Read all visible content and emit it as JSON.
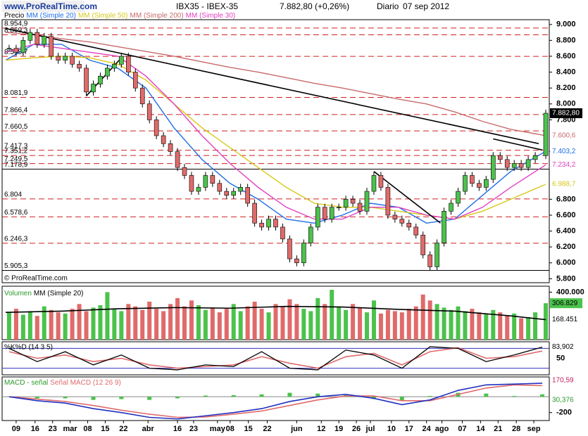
{
  "header": {
    "logo": "www.ProRealTime.com",
    "symbol": "IBX35 - IBEX-35",
    "last": "7.882,80 (+0,26%)",
    "period": "Diario",
    "date": "07 sep 2012"
  },
  "chart_data": {
    "type": "candlestick",
    "price_name": "Precio",
    "copyright": "© ProRealTime.com",
    "xlim": [
      0,
      780
    ],
    "xticks": [
      {
        "value": 20,
        "label": "09"
      },
      {
        "value": 47,
        "label": "16"
      },
      {
        "value": 72,
        "label": "23"
      },
      {
        "value": 97,
        "label": "mar"
      },
      {
        "value": 122,
        "label": "08"
      },
      {
        "value": 147,
        "label": "15"
      },
      {
        "value": 173,
        "label": "22"
      },
      {
        "value": 208,
        "label": "abr"
      },
      {
        "value": 250,
        "label": "16"
      },
      {
        "value": 273,
        "label": "23"
      },
      {
        "value": 307,
        "label": "may"
      },
      {
        "value": 325,
        "label": "08"
      },
      {
        "value": 351,
        "label": "15"
      },
      {
        "value": 378,
        "label": "22"
      },
      {
        "value": 420,
        "label": "jun"
      },
      {
        "value": 455,
        "label": "12"
      },
      {
        "value": 480,
        "label": "19"
      },
      {
        "value": 505,
        "label": "26"
      },
      {
        "value": 525,
        "label": "jul"
      },
      {
        "value": 555,
        "label": "10"
      },
      {
        "value": 580,
        "label": "17"
      },
      {
        "value": 605,
        "label": "24"
      },
      {
        "value": 627,
        "label": "ago"
      },
      {
        "value": 656,
        "label": "07"
      },
      {
        "value": 682,
        "label": "14"
      },
      {
        "value": 707,
        "label": "21"
      },
      {
        "value": 733,
        "label": "28"
      },
      {
        "value": 758,
        "label": "sep"
      }
    ],
    "ylim": [
      5750,
      9060
    ],
    "yticks": [
      {
        "value": 9000,
        "label": "9.000"
      },
      {
        "value": 8800,
        "label": "8.800"
      },
      {
        "value": 8600,
        "label": "8.600"
      },
      {
        "value": 8400,
        "label": "8.400"
      },
      {
        "value": 8200,
        "label": "8.200"
      },
      {
        "value": 8000,
        "label": "8.000"
      },
      {
        "value": 7800,
        "label": "7.800"
      },
      {
        "value": 7400,
        "label": "7.400"
      },
      {
        "value": 6800,
        "label": "6.800"
      },
      {
        "value": 6600,
        "label": "6.600"
      },
      {
        "value": 6400,
        "label": "6.400"
      },
      {
        "value": 6200,
        "label": "6.200"
      },
      {
        "value": 6000,
        "label": "6.000"
      },
      {
        "value": 5800,
        "label": "5.800"
      }
    ],
    "levels": [
      {
        "value": 8954.9,
        "label": "8.954,9",
        "color": "#d02020"
      },
      {
        "value": 8869.3,
        "label": "8.869,3",
        "color": "#d02020"
      },
      {
        "value": 8598.7,
        "label": "8.598,7",
        "color": "#d02020"
      },
      {
        "value": 8081.9,
        "label": "8.081,9",
        "color": "#d02020"
      },
      {
        "value": 7866.4,
        "label": "7.866,4",
        "color": "#d02020"
      },
      {
        "value": 7660.5,
        "label": "7.660,5",
        "color": "#d02020"
      },
      {
        "value": 7417.3,
        "label": "7.417,3",
        "color": "#d02020"
      },
      {
        "value": 7351.2,
        "label": "7.351,2",
        "color": "#d02020"
      },
      {
        "value": 7249.5,
        "label": "7.249,5",
        "color": "#d02020"
      },
      {
        "value": 7178.9,
        "label": "7.178,9",
        "color": "#000000"
      },
      {
        "value": 6804,
        "label": "6.804",
        "color": "#d02020"
      },
      {
        "value": 6578.6,
        "label": "6.578,6",
        "color": "#d02020"
      },
      {
        "value": 6246.3,
        "label": "6.246,3",
        "color": "#d02020"
      },
      {
        "value": 5905.3,
        "label": "5.905,3",
        "color": "#000000"
      }
    ],
    "x": [
      10,
      20,
      30,
      40,
      50,
      60,
      70,
      80,
      90,
      100,
      110,
      120,
      130,
      140,
      150,
      160,
      170,
      180,
      190,
      200,
      210,
      220,
      230,
      240,
      250,
      260,
      270,
      280,
      290,
      300,
      310,
      320,
      330,
      340,
      350,
      360,
      370,
      380,
      390,
      400,
      410,
      420,
      430,
      440,
      450,
      460,
      470,
      480,
      490,
      500,
      510,
      520,
      530,
      540,
      550,
      560,
      570,
      580,
      590,
      600,
      610,
      620,
      630,
      640,
      650,
      660,
      670,
      680,
      690,
      700,
      710,
      720,
      730,
      740,
      750,
      760,
      775
    ],
    "values": [
      8700,
      8650,
      8800,
      8900,
      8750,
      8850,
      8600,
      8550,
      8600,
      8500,
      8450,
      8150,
      8250,
      8350,
      8450,
      8500,
      8600,
      8400,
      8200,
      8000,
      7800,
      7600,
      7500,
      7400,
      7200,
      7100,
      6900,
      6950,
      7100,
      7000,
      6900,
      6850,
      6900,
      6950,
      6750,
      6500,
      6450,
      6550,
      6450,
      6300,
      6050,
      6000,
      6250,
      6450,
      6700,
      6550,
      6700,
      6700,
      6800,
      6750,
      6650,
      6900,
      7100,
      6950,
      6600,
      6550,
      6500,
      6450,
      6350,
      6100,
      5950,
      6250,
      6650,
      6750,
      6900,
      7100,
      7000,
      6950,
      7050,
      7350,
      7300,
      7200,
      7250,
      7200,
      7300,
      7350,
      7882.8
    ],
    "last_label": "7.882,80",
    "series": [
      {
        "name": "MM (Simple 20)",
        "color": "#1e6ee6",
        "x": [
          5,
          45,
          85,
          125,
          165,
          205,
          245,
          285,
          325,
          365,
          405,
          445,
          485,
          525,
          565,
          605,
          645,
          685,
          725,
          775
        ],
        "values": [
          8550,
          8750,
          8750,
          8550,
          8450,
          8200,
          7700,
          7300,
          7000,
          6800,
          6550,
          6500,
          6600,
          6750,
          6700,
          6500,
          6550,
          6850,
          7150,
          7403.2
        ],
        "last_label": "7.403,2"
      },
      {
        "name": "MM (Simple 50)",
        "color": "#d8c81a",
        "x": [
          5,
          45,
          85,
          125,
          165,
          205,
          245,
          285,
          325,
          365,
          405,
          445,
          485,
          525,
          565,
          605,
          645,
          685,
          725,
          775
        ],
        "values": [
          8550,
          8580,
          8600,
          8580,
          8500,
          8300,
          8000,
          7700,
          7450,
          7200,
          6950,
          6750,
          6700,
          6700,
          6650,
          6600,
          6550,
          6650,
          6800,
          6988.7
        ],
        "last_label": "6.988,7"
      },
      {
        "name": "MM (Simple 200)",
        "color": "#c86a6a",
        "x": [
          5,
          45,
          85,
          125,
          165,
          205,
          245,
          285,
          325,
          365,
          405,
          445,
          485,
          525,
          565,
          605,
          645,
          685,
          725,
          775
        ],
        "values": [
          8900,
          8870,
          8820,
          8780,
          8720,
          8660,
          8600,
          8530,
          8460,
          8400,
          8330,
          8260,
          8200,
          8130,
          8060,
          8000,
          7900,
          7780,
          7680,
          7600.6
        ],
        "last_label": "7.600,6"
      },
      {
        "name": "MM (Simple 30)",
        "color": "#e040c0",
        "x": [
          5,
          45,
          85,
          125,
          165,
          205,
          245,
          285,
          325,
          365,
          405,
          445,
          485,
          525,
          565,
          605,
          645,
          685,
          725,
          775
        ],
        "values": [
          8650,
          8750,
          8700,
          8650,
          8600,
          8350,
          8000,
          7600,
          7250,
          6950,
          6700,
          6550,
          6550,
          6700,
          6700,
          6600,
          6550,
          6700,
          6950,
          7234.2
        ],
        "last_label": "7.234,2"
      }
    ],
    "trendlines": [
      {
        "x": [
          5,
          765
        ],
        "values": [
          8950,
          7500
        ]
      },
      {
        "x": [
          120,
          170
        ],
        "values": [
          8100,
          8580
        ]
      },
      {
        "x": [
          530,
          625
        ],
        "values": [
          7150,
          6500
        ]
      },
      {
        "x": [
          700,
          770
        ],
        "values": [
          7560,
          7420
        ]
      }
    ],
    "volume": {
      "title": "Volumen",
      "ma_name": "MM (Simple 20)",
      "ylim": [
        0,
        450000
      ],
      "yticks": [
        {
          "value": 400000,
          "label": "400.000"
        }
      ],
      "values": [
        230000,
        260000,
        210000,
        240000,
        200000,
        280000,
        250000,
        230000,
        220000,
        260000,
        300000,
        240000,
        270000,
        290000,
        400000,
        260000,
        240000,
        300000,
        280000,
        250000,
        320000,
        260000,
        240000,
        300000,
        350000,
        280000,
        330000,
        290000,
        250000,
        270000,
        230000,
        260000,
        300000,
        240000,
        280000,
        320000,
        260000,
        230000,
        300000,
        280000,
        340000,
        300000,
        260000,
        240000,
        350000,
        300000,
        420000,
        280000,
        250000,
        300000,
        270000,
        230000,
        330000,
        220000,
        250000,
        240000,
        230000,
        260000,
        280000,
        380000,
        330000,
        300000,
        270000,
        250000,
        280000,
        240000,
        260000,
        230000,
        220000,
        250000,
        230000,
        200000,
        220000,
        180000,
        190000,
        230000,
        306829
      ],
      "last_label": "306.829",
      "ma": {
        "x": [
          5,
          85,
          165,
          245,
          325,
          405,
          485,
          565,
          645,
          725,
          775
        ],
        "values": [
          230000,
          240000,
          260000,
          270000,
          265000,
          280000,
          275000,
          255000,
          240000,
          200000,
          168451
        ],
        "last_label": "168.451"
      }
    },
    "stochastic": {
      "title": "%K%D (14 3 5)",
      "ylim": [
        0,
        100
      ],
      "yticks": [
        {
          "value": 50,
          "label": "50"
        }
      ],
      "band": [
        20,
        80
      ],
      "x": [
        10,
        50,
        90,
        130,
        170,
        210,
        250,
        290,
        330,
        370,
        410,
        450,
        490,
        530,
        570,
        610,
        650,
        690,
        730,
        770
      ],
      "k": [
        80,
        40,
        70,
        30,
        60,
        20,
        15,
        30,
        25,
        70,
        20,
        15,
        75,
        60,
        20,
        85,
        80,
        40,
        60,
        83.902
      ],
      "d": [
        70,
        50,
        60,
        40,
        50,
        30,
        20,
        25,
        30,
        55,
        35,
        20,
        55,
        65,
        30,
        70,
        82,
        50,
        55,
        72
      ],
      "last_label": "83,902"
    },
    "macd": {
      "title": "MACD - señal",
      "title2": "Señal MACD (12 26 9)",
      "ylim": [
        -300,
        250
      ],
      "yticks": [
        {
          "value": -200,
          "label": "-200"
        }
      ],
      "x": [
        10,
        50,
        90,
        130,
        170,
        210,
        250,
        290,
        330,
        370,
        410,
        450,
        490,
        530,
        570,
        610,
        650,
        690,
        730,
        770
      ],
      "line": [
        0,
        -50,
        -80,
        -150,
        -200,
        -260,
        -280,
        -240,
        -200,
        -150,
        -60,
        0,
        30,
        -20,
        -100,
        -40,
        80,
        150,
        160,
        170.59
      ],
      "signal": [
        0,
        -30,
        -60,
        -110,
        -170,
        -220,
        -260,
        -255,
        -220,
        -180,
        -110,
        -40,
        10,
        10,
        -50,
        -50,
        30,
        110,
        150,
        140.2
      ],
      "hist": [
        0,
        -20,
        -20,
        -40,
        -30,
        -40,
        -20,
        15,
        20,
        30,
        50,
        40,
        20,
        -30,
        -50,
        10,
        50,
        40,
        10,
        30.376
      ],
      "line_label": "170,59",
      "hist_label": "30,376"
    }
  }
}
